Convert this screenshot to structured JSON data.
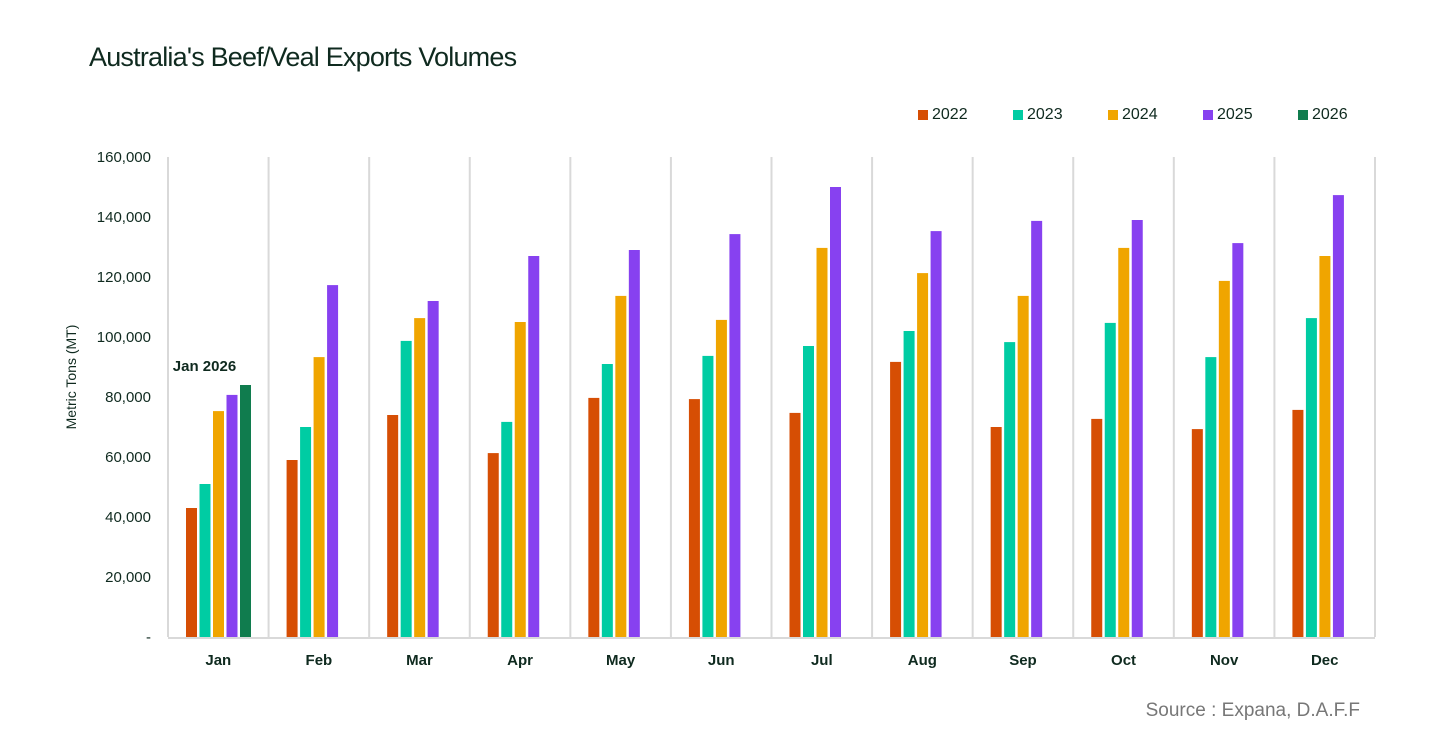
{
  "chart_data": {
    "type": "bar",
    "title": "Australia's Beef/Veal Exports Volumes",
    "xlabel": "",
    "ylabel": "Metric Tons (MT)",
    "ylim": [
      0,
      160000
    ],
    "yticks": [
      0,
      20000,
      40000,
      60000,
      80000,
      100000,
      120000,
      140000,
      160000
    ],
    "ytick_labels": [
      "-",
      "20,000",
      "40,000",
      "60,000",
      "80,000",
      "100,000",
      "120,000",
      "140,000",
      "160,000"
    ],
    "grid": "vertical category separators",
    "legend_position": "top-right",
    "categories": [
      "Jan",
      "Feb",
      "Mar",
      "Apr",
      "May",
      "Jun",
      "Jul",
      "Aug",
      "Sep",
      "Oct",
      "Nov",
      "Dec"
    ],
    "series": [
      {
        "name": "2022",
        "color": "#d64e04",
        "values": [
          43000,
          59000,
          74000,
          61300,
          79700,
          79300,
          74700,
          91700,
          70000,
          72700,
          69300,
          75700
        ]
      },
      {
        "name": "2023",
        "color": "#00cca3",
        "values": [
          51000,
          70000,
          98700,
          71700,
          91000,
          93700,
          97000,
          102000,
          98300,
          104700,
          93300,
          106300
        ]
      },
      {
        "name": "2024",
        "color": "#f0a500",
        "values": [
          75300,
          93300,
          106300,
          105000,
          113700,
          105700,
          129700,
          121300,
          113700,
          129700,
          118700,
          127000
        ]
      },
      {
        "name": "2025",
        "color": "#8741f0",
        "values": [
          80700,
          117300,
          112000,
          127000,
          129000,
          134300,
          150000,
          135300,
          138700,
          139000,
          131300,
          147300
        ]
      },
      {
        "name": "2026",
        "color": "#107c4e",
        "values": [
          84000,
          null,
          null,
          null,
          null,
          null,
          null,
          null,
          null,
          null,
          null,
          null
        ]
      }
    ],
    "annotations": [
      {
        "text": "Jan 2026",
        "category": "Jan",
        "series": "2026"
      }
    ]
  },
  "source": "Source : Expana, D.A.F.F"
}
